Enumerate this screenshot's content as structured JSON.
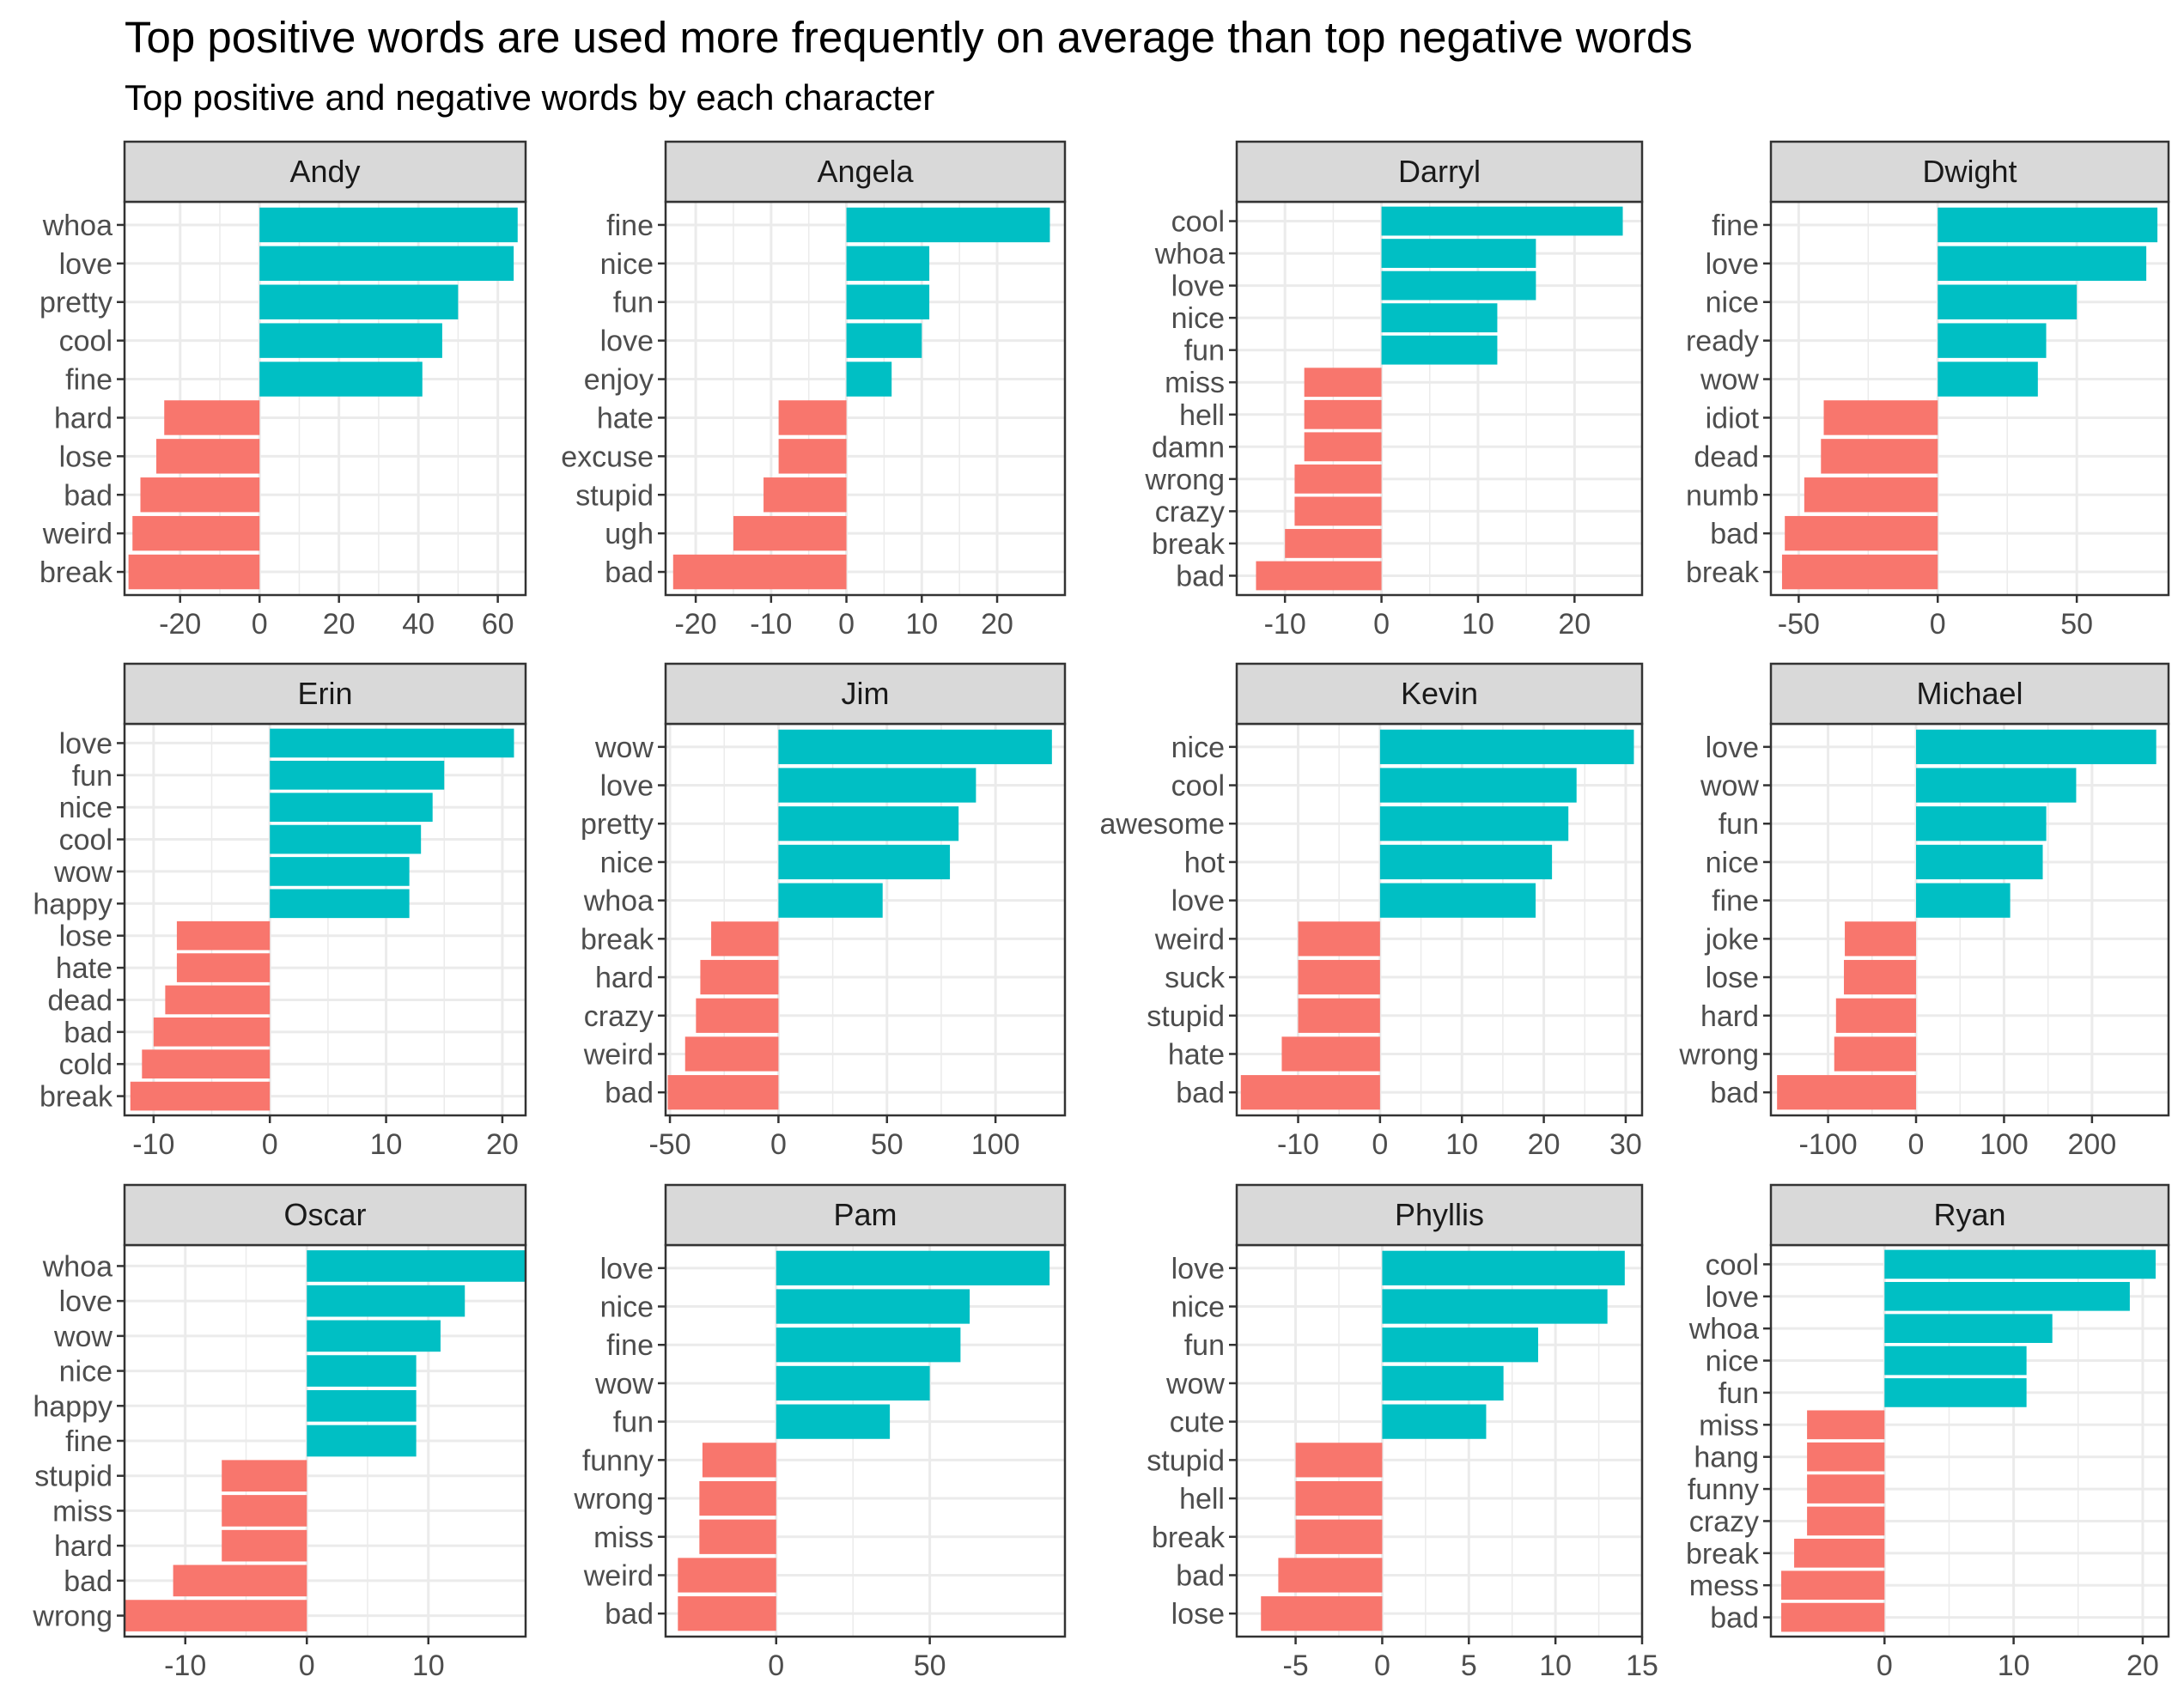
{
  "title": "Top positive words are used more frequently on average than top negative words",
  "subtitle": "Top positive and negative words by each character",
  "colors": {
    "positive": "#00BFC4",
    "negative": "#F8766D",
    "strip": "#d9d9d9",
    "grid": "#ebebeb",
    "border": "#333333"
  },
  "chart_data": {
    "type": "bar",
    "orientation": "horizontal",
    "facets": "4 columns x 3 rows, free scales",
    "legend": "none",
    "grid": true,
    "panels": [
      {
        "name": "Andy",
        "xlim": [
          -34,
          67
        ],
        "ticks": [
          -20,
          0,
          20,
          40,
          60
        ],
        "words": [
          "whoa",
          "love",
          "pretty",
          "cool",
          "fine",
          "hard",
          "lose",
          "bad",
          "weird",
          "break"
        ],
        "values": [
          65,
          64,
          50,
          46,
          41,
          -24,
          -26,
          -30,
          -32,
          -33
        ]
      },
      {
        "name": "Angela",
        "xlim": [
          -24,
          29
        ],
        "ticks": [
          -20,
          -10,
          0,
          10,
          20
        ],
        "words": [
          "fine",
          "nice",
          "fun",
          "love",
          "enjoy",
          "hate",
          "excuse",
          "stupid",
          "ugh",
          "bad"
        ],
        "values": [
          27,
          11,
          11,
          10,
          6,
          -9,
          -9,
          -11,
          -15,
          -23
        ]
      },
      {
        "name": "Darryl",
        "xlim": [
          -15,
          27
        ],
        "ticks": [
          -10,
          0,
          10,
          20
        ],
        "words": [
          "cool",
          "whoa",
          "love",
          "nice",
          "fun",
          "miss",
          "hell",
          "damn",
          "wrong",
          "crazy",
          "break",
          "bad"
        ],
        "values": [
          25,
          16,
          16,
          12,
          12,
          -8,
          -8,
          -8,
          -9,
          -9,
          -10,
          -13
        ]
      },
      {
        "name": "Dwight",
        "xlim": [
          -60,
          83
        ],
        "ticks": [
          -50,
          0,
          50
        ],
        "words": [
          "fine",
          "love",
          "nice",
          "ready",
          "wow",
          "idiot",
          "dead",
          "numb",
          "bad",
          "break"
        ],
        "values": [
          79,
          75,
          50,
          39,
          36,
          -41,
          -42,
          -48,
          -55,
          -56
        ]
      },
      {
        "name": "Erin",
        "xlim": [
          -12.5,
          22
        ],
        "ticks": [
          -10,
          0,
          10,
          20
        ],
        "words": [
          "love",
          "fun",
          "nice",
          "cool",
          "wow",
          "happy",
          "lose",
          "hate",
          "dead",
          "bad",
          "cold",
          "break"
        ],
        "values": [
          21,
          15,
          14,
          13,
          12,
          12,
          -8,
          -8,
          -9,
          -10,
          -11,
          -12
        ]
      },
      {
        "name": "Jim",
        "xlim": [
          -52,
          132
        ],
        "ticks": [
          -50,
          0,
          50,
          100
        ],
        "words": [
          "wow",
          "love",
          "pretty",
          "nice",
          "whoa",
          "break",
          "hard",
          "crazy",
          "weird",
          "bad"
        ],
        "values": [
          126,
          91,
          83,
          79,
          48,
          -31,
          -36,
          -38,
          -43,
          -51
        ]
      },
      {
        "name": "Kevin",
        "xlim": [
          -17.5,
          32
        ],
        "ticks": [
          -10,
          0,
          10,
          20,
          30
        ],
        "words": [
          "nice",
          "cool",
          "awesome",
          "hot",
          "love",
          "weird",
          "suck",
          "stupid",
          "hate",
          "bad"
        ],
        "values": [
          31,
          24,
          23,
          21,
          19,
          -10,
          -10,
          -10,
          -12,
          -17
        ]
      },
      {
        "name": "Michael",
        "xlim": [
          -165,
          287
        ],
        "ticks": [
          -100,
          0,
          100,
          200
        ],
        "words": [
          "love",
          "wow",
          "fun",
          "nice",
          "fine",
          "joke",
          "lose",
          "hard",
          "wrong",
          "bad"
        ],
        "values": [
          273,
          182,
          148,
          144,
          107,
          -81,
          -82,
          -91,
          -93,
          -158
        ]
      },
      {
        "name": "Oscar",
        "xlim": [
          -15,
          18
        ],
        "ticks": [
          -10,
          0,
          10
        ],
        "words": [
          "whoa",
          "love",
          "wow",
          "nice",
          "happy",
          "fine",
          "stupid",
          "miss",
          "hard",
          "bad",
          "wrong"
        ],
        "values": [
          18,
          13,
          11,
          9,
          9,
          9,
          -7,
          -7,
          -7,
          -11,
          -15
        ]
      },
      {
        "name": "Pam",
        "xlim": [
          -36,
          94
        ],
        "ticks": [
          0,
          50
        ],
        "words": [
          "love",
          "nice",
          "fine",
          "wow",
          "fun",
          "funny",
          "wrong",
          "miss",
          "weird",
          "bad"
        ],
        "values": [
          89,
          63,
          60,
          50,
          37,
          -24,
          -25,
          -25,
          -32,
          -32
        ]
      },
      {
        "name": "Phyllis",
        "xlim": [
          -8.4,
          15
        ],
        "ticks": [
          -5,
          0,
          5,
          10,
          15
        ],
        "words": [
          "love",
          "nice",
          "fun",
          "wow",
          "cute",
          "stupid",
          "hell",
          "break",
          "bad",
          "lose"
        ],
        "values": [
          14,
          13,
          9,
          7,
          6,
          -5,
          -5,
          -5,
          -6,
          -7
        ]
      },
      {
        "name": "Ryan",
        "xlim": [
          -8.8,
          22
        ],
        "ticks": [
          0,
          10,
          20
        ],
        "words": [
          "cool",
          "love",
          "whoa",
          "nice",
          "fun",
          "miss",
          "hang",
          "funny",
          "crazy",
          "break",
          "mess",
          "bad"
        ],
        "values": [
          21,
          19,
          13,
          11,
          11,
          -6,
          -6,
          -6,
          -6,
          -7,
          -8,
          -8
        ]
      }
    ]
  }
}
